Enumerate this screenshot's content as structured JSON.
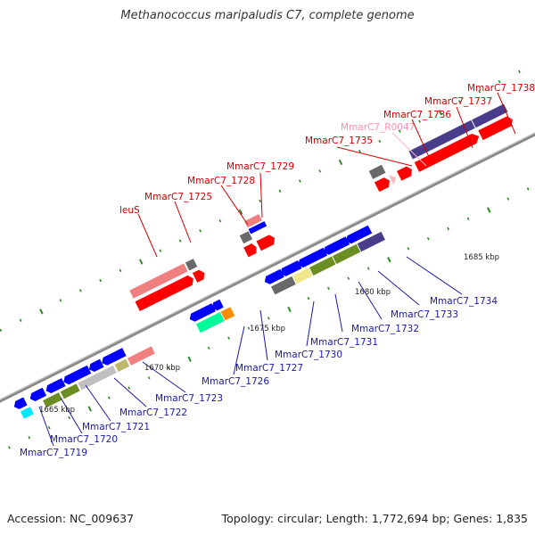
{
  "title": "Methanococcus maripaludis C7, complete genome",
  "footer": {
    "accession": "Accession: NC_009637",
    "topology": "Topology: circular; Length: 1,772,694 bp; Genes: 1,835"
  },
  "ruler": [
    "1665 kbp",
    "1670 kbp",
    "1675 kbp",
    "1680 kbp",
    "1685 kbp"
  ],
  "labels_top": [
    "leuS",
    "MmarC7_1725",
    "MmarC7_1728",
    "MmarC7_1729",
    "MmarC7_1735",
    "MmarC7_R0047",
    "MmarC7_1736",
    "MmarC7_1737",
    "MmarC7_1738"
  ],
  "labels_bottom": [
    "MmarC7_1719",
    "MmarC7_1720",
    "MmarC7_1721",
    "MmarC7_1722",
    "MmarC7_1723",
    "MmarC7_1726",
    "MmarC7_1727",
    "MmarC7_1730",
    "MmarC7_1731",
    "MmarC7_1732",
    "MmarC7_1733",
    "MmarC7_1734"
  ],
  "colors": {
    "forward_red": "#ff0000",
    "forward_salmon": "#f08080",
    "reverse_blue": "#0000ff",
    "olive": "#6b8e23",
    "silver": "#c0c0c0",
    "khaki": "#bdb76b",
    "slate": "#483d8b",
    "gray": "#696969",
    "teal": "#00fa9a",
    "orange": "#ff8c00",
    "pink": "#ffb6c1",
    "tick_green": "#2e8b22"
  }
}
